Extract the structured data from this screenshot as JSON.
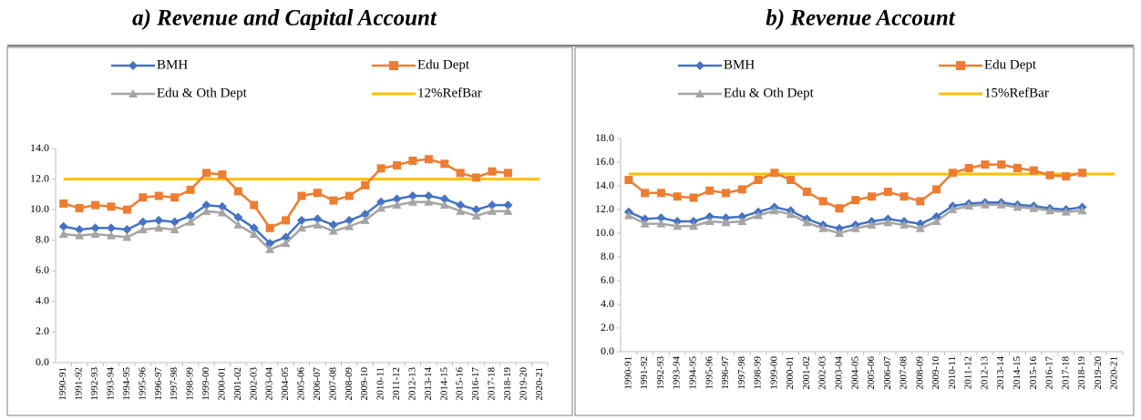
{
  "chart_data": [
    {
      "type": "line",
      "title": "a) Revenue and Capital Account",
      "categories": [
        "1990-91",
        "1991-92",
        "1992-93",
        "1993-94",
        "1994-95",
        "1995-96",
        "1996-97",
        "1997-98",
        "1998-99",
        "1999-00",
        "2000-01",
        "2001-02",
        "2002-03",
        "2003-04",
        "2004-05",
        "2005-06",
        "2006-07",
        "2007-08",
        "2008-09",
        "2009-10",
        "2010-11",
        "2011-12",
        "2012-13",
        "2013-14",
        "2014-15",
        "2015-16",
        "2016-17",
        "2017-18",
        "2018-19",
        "2019-20",
        "2020-21"
      ],
      "series": [
        {
          "name": "BMH",
          "color": "#4472c4",
          "marker": "diamond",
          "values": [
            8.9,
            8.7,
            8.8,
            8.8,
            8.7,
            9.2,
            9.3,
            9.2,
            9.6,
            10.3,
            10.2,
            9.5,
            8.8,
            7.8,
            8.2,
            9.3,
            9.4,
            9.0,
            9.3,
            9.7,
            10.5,
            10.7,
            10.9,
            10.9,
            10.7,
            10.3,
            10.0,
            10.3,
            10.3,
            null,
            null
          ]
        },
        {
          "name": "Edu Dept",
          "color": "#ed7d31",
          "marker": "square",
          "values": [
            10.4,
            10.1,
            10.3,
            10.2,
            10.0,
            10.8,
            10.9,
            10.8,
            11.3,
            12.4,
            12.3,
            11.2,
            10.3,
            8.8,
            9.3,
            10.9,
            11.1,
            10.6,
            10.9,
            11.6,
            12.7,
            12.9,
            13.2,
            13.3,
            13.0,
            12.4,
            12.1,
            12.5,
            12.4,
            null,
            null
          ]
        },
        {
          "name": "Edu & Oth Dept",
          "color": "#a5a5a5",
          "marker": "triangle",
          "values": [
            8.4,
            8.3,
            8.4,
            8.3,
            8.2,
            8.7,
            8.8,
            8.7,
            9.2,
            9.9,
            9.8,
            9.0,
            8.4,
            7.4,
            7.8,
            8.8,
            9.0,
            8.6,
            8.9,
            9.3,
            10.1,
            10.3,
            10.5,
            10.5,
            10.3,
            9.9,
            9.6,
            9.9,
            9.9,
            null,
            null
          ]
        },
        {
          "name": "12%RefBar",
          "color": "#ffc000",
          "marker": "none",
          "values": [
            12,
            12,
            12,
            12,
            12,
            12,
            12,
            12,
            12,
            12,
            12,
            12,
            12,
            12,
            12,
            12,
            12,
            12,
            12,
            12,
            12,
            12,
            12,
            12,
            12,
            12,
            12,
            12,
            12,
            12,
            12
          ]
        }
      ],
      "ylim": [
        0,
        14
      ],
      "yticks": [
        {
          "value": 0,
          "label": "0.0"
        },
        {
          "value": 2,
          "label": "2.0"
        },
        {
          "value": 4,
          "label": "4.0"
        },
        {
          "value": 6,
          "label": "6.0"
        },
        {
          "value": 8,
          "label": "8.0"
        },
        {
          "value": 10,
          "label": "10.0"
        },
        {
          "value": 12,
          "label": "12.0"
        },
        {
          "value": 14,
          "label": "14.0"
        }
      ],
      "grid": false
    },
    {
      "type": "line",
      "title": "b) Revenue Account",
      "categories": [
        "1990-91",
        "1991-92",
        "1992-93",
        "1993-94",
        "1994-95",
        "1995-96",
        "1996-97",
        "1997-98",
        "1998-99",
        "1999-00",
        "2000-01",
        "2001-02",
        "2002-03",
        "2003-04",
        "2004-05",
        "2005-06",
        "2006-07",
        "2007-08",
        "2008-09",
        "2009-10",
        "2010-11",
        "2011-12",
        "2012-13",
        "2013-14",
        "2014-15",
        "2015-16",
        "2016-17",
        "2017-18",
        "2018-19",
        "2019-20",
        "2020-21"
      ],
      "series": [
        {
          "name": "BMH",
          "color": "#4472c4",
          "marker": "diamond",
          "values": [
            11.8,
            11.2,
            11.3,
            11.0,
            11.0,
            11.4,
            11.3,
            11.4,
            11.8,
            12.2,
            11.9,
            11.2,
            10.7,
            10.4,
            10.7,
            11.0,
            11.2,
            11.0,
            10.8,
            11.4,
            12.3,
            12.5,
            12.6,
            12.6,
            12.4,
            12.3,
            12.1,
            12.0,
            12.2,
            null,
            null
          ]
        },
        {
          "name": "Edu Dept",
          "color": "#ed7d31",
          "marker": "square",
          "values": [
            14.5,
            13.4,
            13.4,
            13.1,
            13.0,
            13.6,
            13.4,
            13.7,
            14.5,
            15.1,
            14.5,
            13.5,
            12.7,
            12.1,
            12.8,
            13.1,
            13.5,
            13.1,
            12.7,
            13.7,
            15.1,
            15.5,
            15.8,
            15.8,
            15.5,
            15.3,
            14.9,
            14.8,
            15.1,
            null,
            null
          ]
        },
        {
          "name": "Edu & Oth Dept",
          "color": "#a5a5a5",
          "marker": "triangle",
          "values": [
            11.5,
            10.8,
            10.8,
            10.6,
            10.6,
            11.0,
            10.9,
            11.0,
            11.5,
            11.9,
            11.6,
            10.9,
            10.4,
            10.0,
            10.4,
            10.7,
            10.9,
            10.7,
            10.4,
            11.0,
            12.0,
            12.3,
            12.4,
            12.4,
            12.2,
            12.1,
            11.9,
            11.8,
            11.9,
            null,
            null
          ]
        },
        {
          "name": "15%RefBar",
          "color": "#ffc000",
          "marker": "none",
          "values": [
            15,
            15,
            15,
            15,
            15,
            15,
            15,
            15,
            15,
            15,
            15,
            15,
            15,
            15,
            15,
            15,
            15,
            15,
            15,
            15,
            15,
            15,
            15,
            15,
            15,
            15,
            15,
            15,
            15,
            15,
            15
          ]
        }
      ],
      "ylim": [
        0,
        18
      ],
      "yticks": [
        {
          "value": 0,
          "label": "0.0"
        },
        {
          "value": 2,
          "label": "2.0"
        },
        {
          "value": 4,
          "label": "4.0"
        },
        {
          "value": 6,
          "label": "6.0"
        },
        {
          "value": 8,
          "label": "8.0"
        },
        {
          "value": 10,
          "label": "10.0"
        },
        {
          "value": 12,
          "label": "12.0"
        },
        {
          "value": 14,
          "label": "14.0"
        },
        {
          "value": 16,
          "label": "16.0"
        },
        {
          "value": 18,
          "label": "18.0"
        }
      ],
      "grid": false
    }
  ]
}
